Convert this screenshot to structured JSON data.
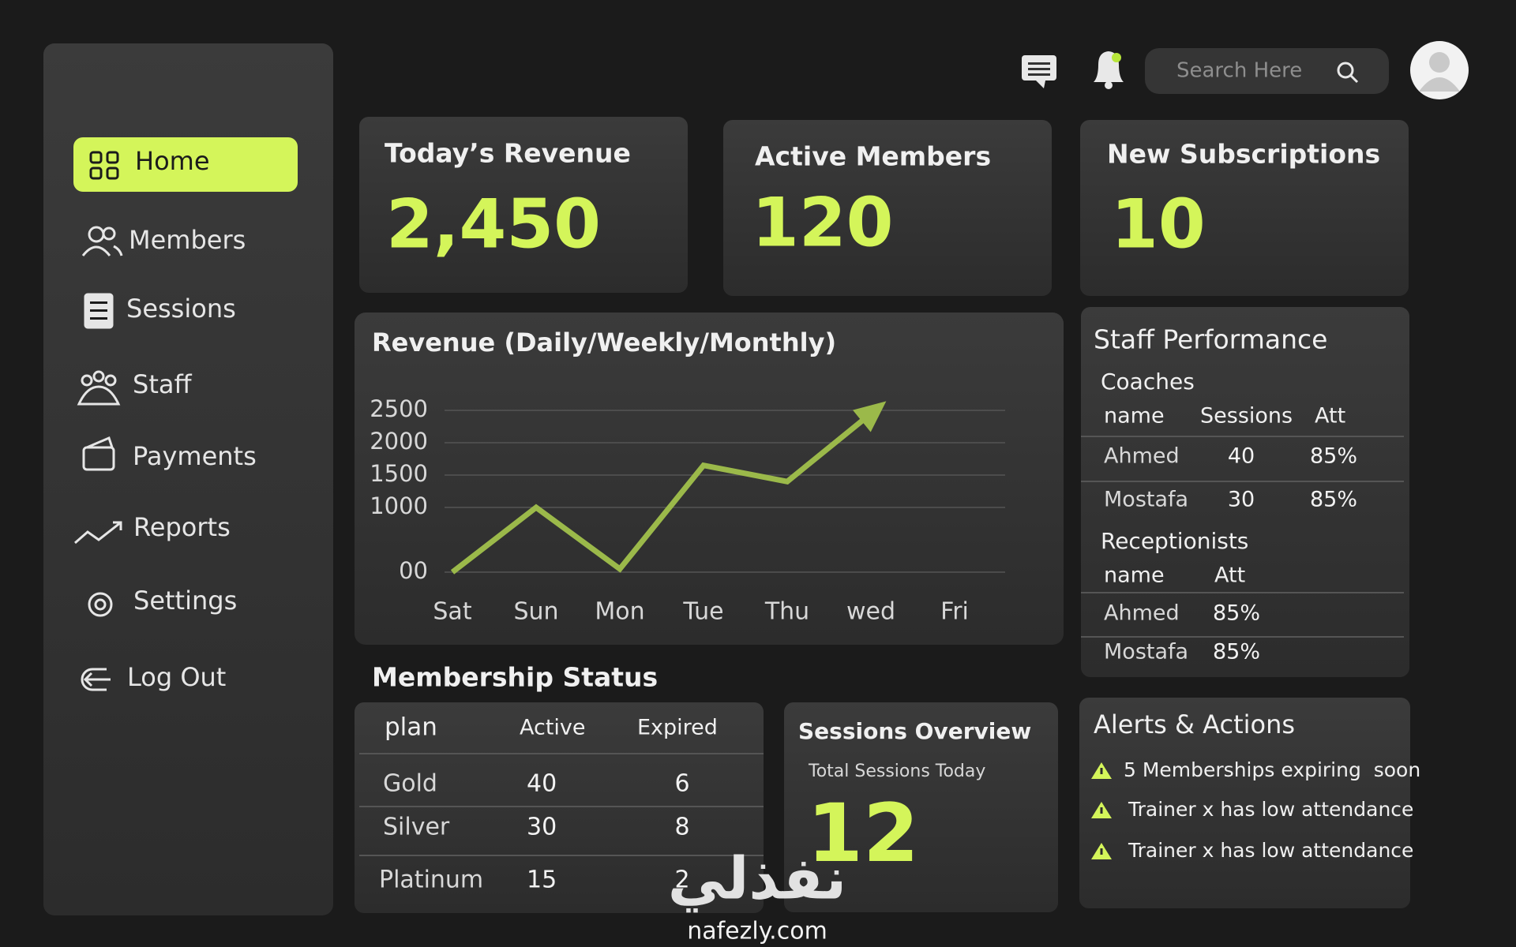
{
  "sidebar": {
    "nav": [
      "Home",
      "Members",
      "Sessions",
      "Staff",
      "Payments",
      "Reports",
      "Settings",
      "Log Out"
    ]
  },
  "header": {
    "search_placeholder": "Search Here"
  },
  "stats": [
    {
      "label": "Today’s Revenue",
      "value": "2,450"
    },
    {
      "label": "Active Members",
      "value": "120"
    },
    {
      "label": "New Subscriptions",
      "value": "10"
    }
  ],
  "chart_data": {
    "type": "line",
    "title": "Revenue (Daily/Weekly/Monthly)",
    "categories": [
      "Sat",
      "Sun",
      "Mon",
      "Tue",
      "Thu",
      "wed",
      "Fri"
    ],
    "values": [
      0,
      1000,
      50,
      1650,
      1400,
      2450,
      null
    ],
    "color": "#9bb94a",
    "ylim": [
      0,
      2500
    ],
    "yticks": [
      {
        "value": 0,
        "label": "00"
      },
      1000,
      1500,
      2000,
      2500
    ],
    "grid": true
  },
  "membership": {
    "title": "Membership Status",
    "columns": [
      "plan",
      "Active",
      "Expired"
    ],
    "rows": [
      [
        "Gold",
        "40",
        "6"
      ],
      [
        "Silver",
        "30",
        "8"
      ],
      [
        "Platinum",
        "15",
        "2"
      ]
    ]
  },
  "sessions_overview": {
    "title": "Sessions Overview",
    "subtitle": "Total Sessions Today",
    "value": "12"
  },
  "staff": {
    "title": "Staff Performance",
    "coaches": {
      "title": "Coaches",
      "columns": [
        "name",
        "Sessions",
        "Att"
      ],
      "rows": [
        [
          "Ahmed",
          "40",
          "85%"
        ],
        [
          "Mostafa",
          "30",
          "85%"
        ]
      ]
    },
    "receptionists": {
      "title": "Receptionists",
      "columns": [
        "name",
        "Att"
      ],
      "rows": [
        [
          "Ahmed",
          "85%"
        ],
        [
          "Mostafa",
          "85%"
        ]
      ]
    }
  },
  "alerts": {
    "title": "Alerts & Actions",
    "items": [
      "5 Memberships expiring  soon",
      "Trainer x has low attendance",
      "Trainer x has low attendance"
    ]
  },
  "watermark": {
    "arabic": "نفذلي",
    "latin": "nafezly.com"
  }
}
